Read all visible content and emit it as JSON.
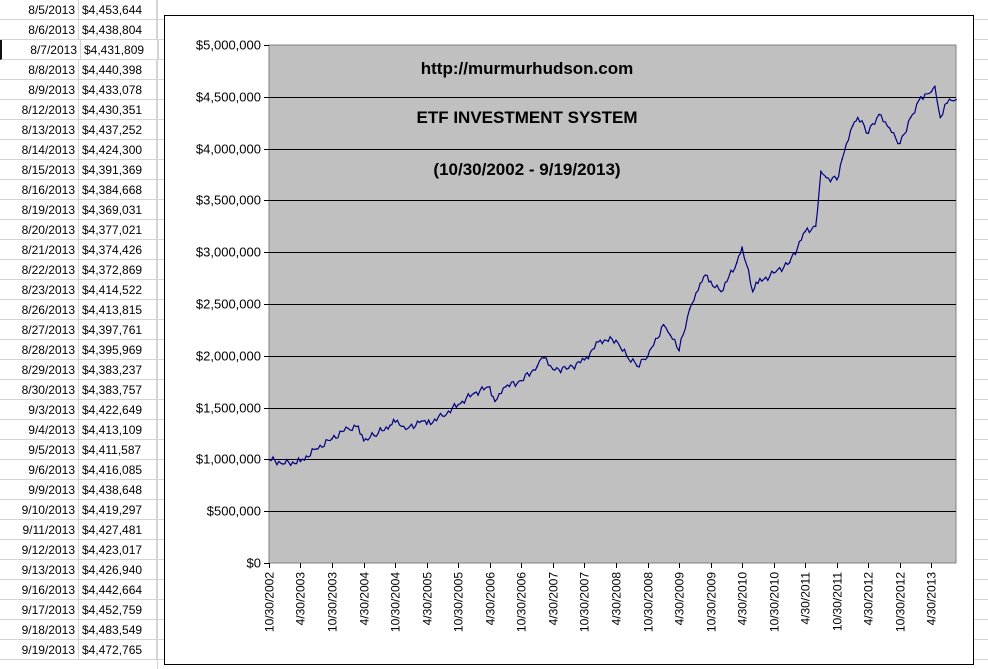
{
  "sheet": {
    "rows": [
      {
        "date": "8/5/2013",
        "value": "$4,453,644"
      },
      {
        "date": "8/6/2013",
        "value": "$4,438,804"
      },
      {
        "date": "8/7/2013",
        "value": "$4,431,809"
      },
      {
        "date": "8/8/2013",
        "value": "$4,440,398"
      },
      {
        "date": "8/9/2013",
        "value": "$4,433,078"
      },
      {
        "date": "8/12/2013",
        "value": "$4,430,351"
      },
      {
        "date": "8/13/2013",
        "value": "$4,437,252"
      },
      {
        "date": "8/14/2013",
        "value": "$4,424,300"
      },
      {
        "date": "8/15/2013",
        "value": "$4,391,369"
      },
      {
        "date": "8/16/2013",
        "value": "$4,384,668"
      },
      {
        "date": "8/19/2013",
        "value": "$4,369,031"
      },
      {
        "date": "8/20/2013",
        "value": "$4,377,021"
      },
      {
        "date": "8/21/2013",
        "value": "$4,374,426"
      },
      {
        "date": "8/22/2013",
        "value": "$4,372,869"
      },
      {
        "date": "8/23/2013",
        "value": "$4,414,522"
      },
      {
        "date": "8/26/2013",
        "value": "$4,413,815"
      },
      {
        "date": "8/27/2013",
        "value": "$4,397,761"
      },
      {
        "date": "8/28/2013",
        "value": "$4,395,969"
      },
      {
        "date": "8/29/2013",
        "value": "$4,383,237"
      },
      {
        "date": "8/30/2013",
        "value": "$4,383,757"
      },
      {
        "date": "9/3/2013",
        "value": "$4,422,649"
      },
      {
        "date": "9/4/2013",
        "value": "$4,413,109"
      },
      {
        "date": "9/5/2013",
        "value": "$4,411,587"
      },
      {
        "date": "9/6/2013",
        "value": "$4,416,085"
      },
      {
        "date": "9/9/2013",
        "value": "$4,438,648"
      },
      {
        "date": "9/10/2013",
        "value": "$4,419,297"
      },
      {
        "date": "9/11/2013",
        "value": "$4,427,481"
      },
      {
        "date": "9/12/2013",
        "value": "$4,423,017"
      },
      {
        "date": "9/13/2013",
        "value": "$4,426,940"
      },
      {
        "date": "9/16/2013",
        "value": "$4,442,664"
      },
      {
        "date": "9/17/2013",
        "value": "$4,452,759"
      },
      {
        "date": "9/18/2013",
        "value": "$4,483,549"
      },
      {
        "date": "9/19/2013",
        "value": "$4,472,765"
      }
    ]
  },
  "colors": {
    "plot_bg": "#c0c0c0",
    "line": "#000080",
    "grid": "#000000",
    "cell_border": "#d4d4d4"
  },
  "chart_data": {
    "type": "line",
    "annotations": [
      "http://murmurhudson.com",
      "ETF INVESTMENT SYSTEM",
      "(10/30/2002 - 9/19/2013)"
    ],
    "xlabel": "",
    "ylabel": "",
    "ylim": [
      0,
      5000000
    ],
    "y_ticks": [
      "$5,000,000",
      "$4,500,000",
      "$4,000,000",
      "$3,500,000",
      "$3,000,000",
      "$2,500,000",
      "$2,000,000",
      "$1,500,000",
      "$1,000,000",
      "$500,000",
      "$0"
    ],
    "x_ticks": [
      "10/30/2002",
      "4/30/2003",
      "10/30/2003",
      "4/30/2004",
      "10/30/2004",
      "4/30/2005",
      "10/30/2005",
      "4/30/2006",
      "10/30/2006",
      "4/30/2007",
      "10/30/2007",
      "4/30/2008",
      "10/30/2008",
      "4/30/2009",
      "10/30/2009",
      "4/30/2010",
      "10/30/2010",
      "4/30/2011",
      "10/30/2011",
      "4/30/2012",
      "10/30/2012",
      "4/30/2013"
    ],
    "xlim": [
      "10/30/2002",
      "9/19/2013"
    ],
    "grid": "horizontal",
    "legend": "none",
    "series": [
      {
        "x": [
          "10/30/2002",
          "1/30/2003",
          "4/30/2003",
          "7/30/2003",
          "10/30/2003",
          "1/30/2004",
          "3/30/2004",
          "4/30/2004",
          "6/30/2004",
          "9/30/2004",
          "10/30/2004",
          "12/30/2004",
          "3/30/2005",
          "4/30/2005",
          "7/30/2005",
          "10/30/2005",
          "1/30/2006",
          "4/30/2006",
          "5/30/2006",
          "7/30/2006",
          "10/30/2006",
          "1/30/2007",
          "3/10/2007",
          "4/30/2007",
          "7/30/2007",
          "10/30/2007",
          "1/30/2008",
          "4/30/2008",
          "6/30/2008",
          "8/30/2008",
          "10/30/2008",
          "1/30/2009",
          "3/10/2009",
          "4/30/2009",
          "6/30/2009",
          "8/30/2009",
          "9/30/2009",
          "10/30/2009",
          "12/30/2009",
          "3/30/2010",
          "4/30/2010",
          "6/30/2010",
          "7/30/2010",
          "10/30/2010",
          "1/30/2011",
          "4/30/2011",
          "6/30/2011",
          "7/30/2011",
          "8/30/2011",
          "10/30/2011",
          "11/30/2011",
          "1/30/2012",
          "2/28/2012",
          "4/30/2012",
          "6/30/2012",
          "8/30/2012",
          "10/30/2012",
          "12/30/2012",
          "2/28/2013",
          "4/30/2013",
          "5/20/2013",
          "6/20/2013",
          "7/30/2013",
          "9/19/2013"
        ],
        "y": [
          1000000,
          960000,
          980000,
          1100000,
          1200000,
          1300000,
          1320000,
          1180000,
          1230000,
          1330000,
          1360000,
          1290000,
          1370000,
          1340000,
          1420000,
          1530000,
          1640000,
          1700000,
          1560000,
          1700000,
          1760000,
          1900000,
          1980000,
          1870000,
          1880000,
          1960000,
          2150000,
          2150000,
          2000000,
          1900000,
          1990000,
          2300000,
          2200000,
          2050000,
          2450000,
          2700000,
          2780000,
          2720000,
          2620000,
          2900000,
          3050000,
          2620000,
          2700000,
          2800000,
          2900000,
          3200000,
          3250000,
          3780000,
          3720000,
          3700000,
          3900000,
          4220000,
          4300000,
          4150000,
          4330000,
          4200000,
          4050000,
          4300000,
          4500000,
          4550000,
          4600000,
          4300000,
          4440000,
          4472765
        ]
      }
    ]
  }
}
